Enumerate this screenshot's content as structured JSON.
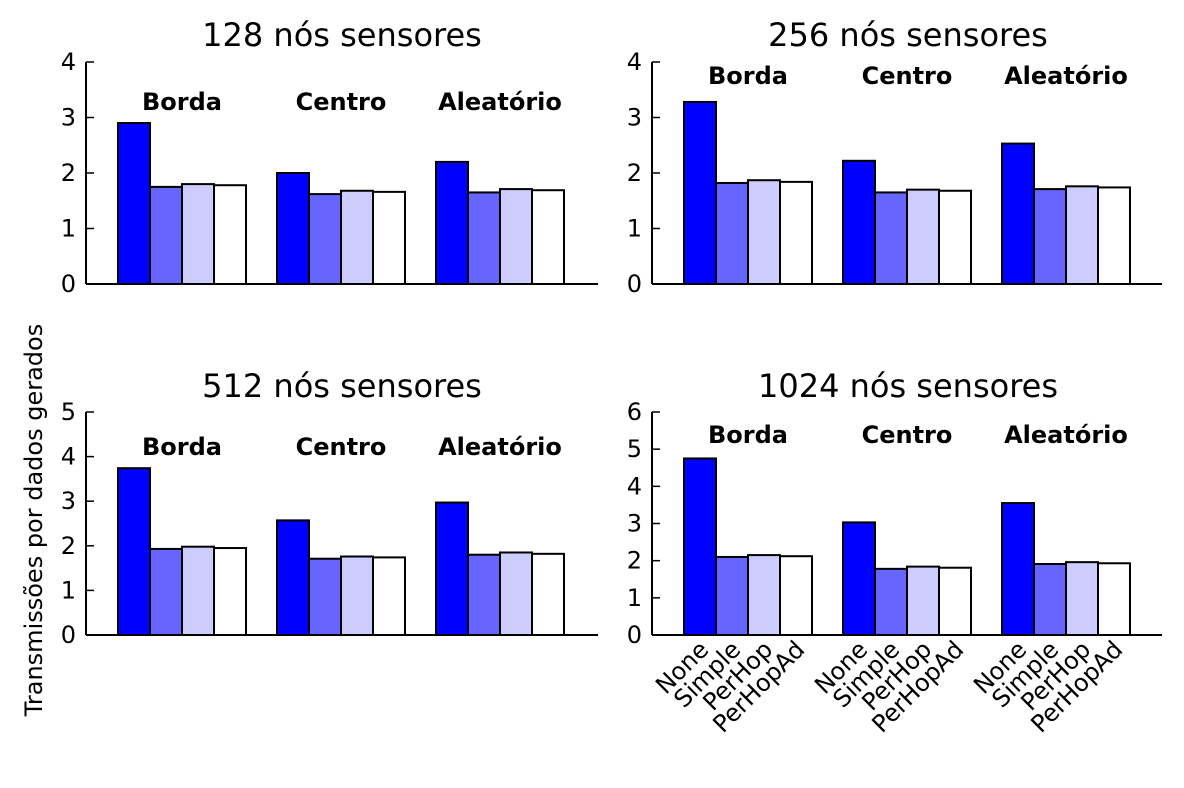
{
  "y_axis_label": "Transmissões por dados gerados",
  "chart_data": [
    {
      "type": "bar",
      "title": "128 nós sensores",
      "ylim": [
        0,
        4
      ],
      "yticks": [
        0,
        1,
        2,
        3,
        4
      ],
      "groups": [
        "Borda",
        "Centro",
        "Aleatório"
      ],
      "categories": [
        "None",
        "Simple",
        "PerHop",
        "PerHopAd"
      ],
      "colors": [
        "#0000ff",
        "#6666ff",
        "#ccccff",
        "#ffffff"
      ],
      "values": [
        [
          2.9,
          1.75,
          1.8,
          1.78
        ],
        [
          2.0,
          1.62,
          1.68,
          1.66
        ],
        [
          2.2,
          1.65,
          1.71,
          1.69
        ]
      ],
      "show_category_labels": false
    },
    {
      "type": "bar",
      "title": "256 nós sensores",
      "ylim": [
        0,
        4
      ],
      "yticks": [
        0,
        1,
        2,
        3,
        4
      ],
      "groups": [
        "Borda",
        "Centro",
        "Aleatório"
      ],
      "categories": [
        "None",
        "Simple",
        "PerHop",
        "PerHopAd"
      ],
      "colors": [
        "#0000ff",
        "#6666ff",
        "#ccccff",
        "#ffffff"
      ],
      "values": [
        [
          3.28,
          1.82,
          1.87,
          1.84
        ],
        [
          2.22,
          1.65,
          1.7,
          1.68
        ],
        [
          2.53,
          1.71,
          1.76,
          1.74
        ]
      ],
      "show_category_labels": false
    },
    {
      "type": "bar",
      "title": "512 nós sensores",
      "ylim": [
        0,
        5
      ],
      "yticks": [
        0,
        1,
        2,
        3,
        4,
        5
      ],
      "groups": [
        "Borda",
        "Centro",
        "Aleatório"
      ],
      "categories": [
        "None",
        "Simple",
        "PerHop",
        "PerHopAd"
      ],
      "colors": [
        "#0000ff",
        "#6666ff",
        "#ccccff",
        "#ffffff"
      ],
      "values": [
        [
          3.74,
          1.93,
          1.98,
          1.95
        ],
        [
          2.57,
          1.71,
          1.76,
          1.74
        ],
        [
          2.97,
          1.8,
          1.85,
          1.82
        ]
      ],
      "show_category_labels": false
    },
    {
      "type": "bar",
      "title": "1024 nós sensores",
      "ylim": [
        0,
        6
      ],
      "yticks": [
        0,
        1,
        2,
        3,
        4,
        5,
        6
      ],
      "groups": [
        "Borda",
        "Centro",
        "Aleatório"
      ],
      "categories": [
        "None",
        "Simple",
        "PerHop",
        "PerHopAd"
      ],
      "colors": [
        "#0000ff",
        "#6666ff",
        "#ccccff",
        "#ffffff"
      ],
      "values": [
        [
          4.75,
          2.1,
          2.15,
          2.12
        ],
        [
          3.03,
          1.78,
          1.84,
          1.81
        ],
        [
          3.55,
          1.91,
          1.96,
          1.93
        ]
      ],
      "show_category_labels": true
    }
  ]
}
